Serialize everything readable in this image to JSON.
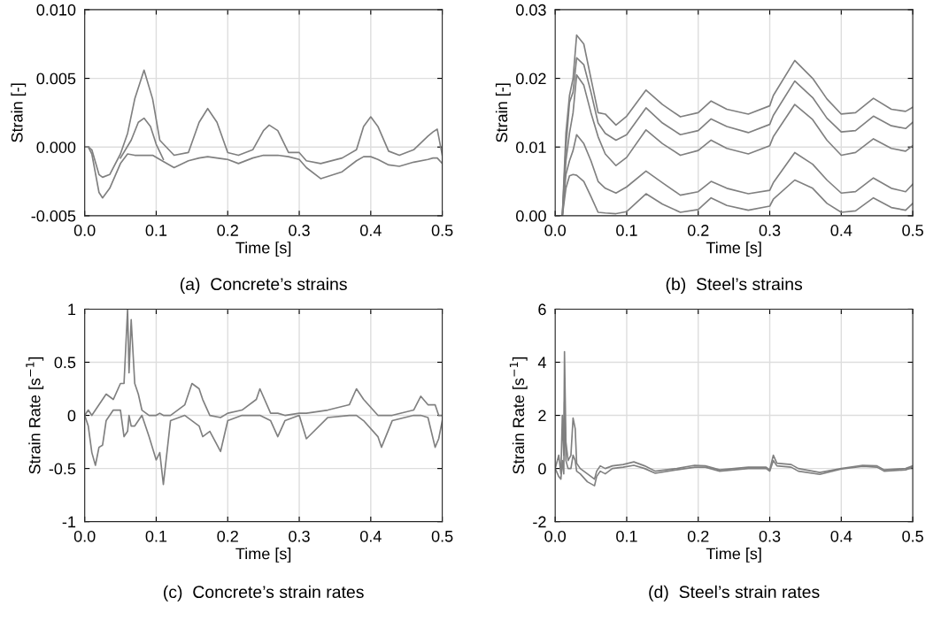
{
  "chart_data": [
    {
      "type": "line",
      "title": "(a)  Concrete’s strains",
      "xlabel": "Time [s]",
      "ylabel": "Strain [-]",
      "grid": true,
      "legend": false,
      "xlim": [
        0,
        0.5
      ],
      "xticks": [
        {
          "value": 0,
          "label": "0.0"
        },
        {
          "value": 0.1,
          "label": "0.1"
        },
        {
          "value": 0.2,
          "label": "0.2"
        },
        {
          "value": 0.3,
          "label": "0.3"
        },
        {
          "value": 0.4,
          "label": "0.4"
        },
        {
          "value": 0.5,
          "label": "0.5"
        }
      ],
      "ylim": [
        -0.005,
        0.01
      ],
      "yticks": [
        {
          "value": -0.005,
          "label": "-0.005"
        },
        {
          "value": 0,
          "label": "0.000"
        },
        {
          "value": 0.005,
          "label": "0.005"
        },
        {
          "value": 0.01,
          "label": "0.010"
        }
      ],
      "series": [
        {
          "color": "#808080",
          "x": [
            0,
            0.005,
            0.01,
            0.02,
            0.025,
            0.035,
            0.05,
            0.06,
            0.07,
            0.083,
            0.095,
            0.105,
            0.125,
            0.145,
            0.16,
            0.172,
            0.185,
            0.2,
            0.215,
            0.235,
            0.25,
            0.258,
            0.27,
            0.285,
            0.3,
            0.31,
            0.33,
            0.36,
            0.38,
            0.39,
            0.4,
            0.41,
            0.425,
            0.44,
            0.46,
            0.48,
            0.487,
            0.493,
            0.5
          ],
          "values": [
            0,
            0,
            -0.0002,
            -0.002,
            -0.0022,
            -0.002,
            -0.0005,
            0.001,
            0.0035,
            0.0056,
            0.0035,
            0.0005,
            -0.0006,
            -0.0004,
            0.0018,
            0.0028,
            0.0018,
            -0.0004,
            -0.0006,
            -0.0002,
            0.0012,
            0.0016,
            0.0012,
            -0.0004,
            -0.0004,
            -0.001,
            -0.0012,
            -0.0008,
            -0.0002,
            0.0015,
            0.0022,
            0.0015,
            -0.0003,
            -0.0006,
            -0.0002,
            0.0008,
            0.0011,
            0.0013,
            -0.0006
          ]
        },
        {
          "color": "#808080",
          "x": [
            0,
            0.005,
            0.01,
            0.02,
            0.025,
            0.035,
            0.05,
            0.06,
            0.07,
            0.083,
            0.095,
            0.105,
            0.125,
            0.145,
            0.16,
            0.172,
            0.185,
            0.2,
            0.215,
            0.235,
            0.25,
            0.258,
            0.27,
            0.285,
            0.3,
            0.31,
            0.33,
            0.36,
            0.38,
            0.39,
            0.4,
            0.41,
            0.425,
            0.44,
            0.46,
            0.48,
            0.487,
            0.493,
            0.5
          ],
          "values": [
            0,
            0,
            -0.0005,
            -0.0033,
            -0.0037,
            -0.003,
            -0.0012,
            -0.0005,
            -0.0006,
            -0.0006,
            -0.0006,
            -0.0009,
            -0.0015,
            -0.001,
            -0.0008,
            -0.0007,
            -0.0008,
            -0.0009,
            -0.0012,
            -0.0008,
            -0.0006,
            -0.0006,
            -0.0006,
            -0.0007,
            -0.0009,
            -0.0015,
            -0.0023,
            -0.0018,
            -0.001,
            -0.0007,
            -0.0007,
            -0.0009,
            -0.0013,
            -0.0014,
            -0.0011,
            -0.0009,
            -0.0008,
            -0.0008,
            -0.0012
          ]
        },
        {
          "color": "#808080",
          "x": [
            0.05,
            0.065,
            0.075,
            0.083,
            0.092,
            0.1,
            0.11
          ],
          "values": [
            -0.0008,
            0.0005,
            0.0018,
            0.0021,
            0.0015,
            0.0002,
            -0.0009
          ]
        }
      ]
    },
    {
      "type": "line",
      "title": "(b)  Steel’s strains",
      "xlabel": "Time [s]",
      "ylabel": "Strain [-]",
      "grid": true,
      "legend": false,
      "xlim": [
        0,
        0.5
      ],
      "xticks": [
        {
          "value": 0,
          "label": "0.0"
        },
        {
          "value": 0.1,
          "label": "0.1"
        },
        {
          "value": 0.2,
          "label": "0.2"
        },
        {
          "value": 0.3,
          "label": "0.3"
        },
        {
          "value": 0.4,
          "label": "0.4"
        },
        {
          "value": 0.5,
          "label": "0.5"
        }
      ],
      "ylim": [
        0,
        0.03
      ],
      "yticks": [
        {
          "value": 0,
          "label": "0.00"
        },
        {
          "value": 0.01,
          "label": "0.01"
        },
        {
          "value": 0.02,
          "label": "0.02"
        },
        {
          "value": 0.03,
          "label": "0.03"
        }
      ],
      "series": [
        {
          "color": "#808080",
          "x": [
            0,
            0.01,
            0.015,
            0.02,
            0.025,
            0.03,
            0.04,
            0.05,
            0.06,
            0.07,
            0.085,
            0.1,
            0.127,
            0.15,
            0.175,
            0.2,
            0.218,
            0.24,
            0.27,
            0.3,
            0.305,
            0.335,
            0.36,
            0.38,
            0.4,
            0.42,
            0.445,
            0.47,
            0.49,
            0.5
          ],
          "values": [
            0,
            0,
            0.012,
            0.0175,
            0.02,
            0.0263,
            0.025,
            0.02,
            0.015,
            0.0148,
            0.0132,
            0.0145,
            0.0183,
            0.0162,
            0.0144,
            0.015,
            0.0167,
            0.0155,
            0.0148,
            0.016,
            0.0175,
            0.0226,
            0.02,
            0.017,
            0.0148,
            0.015,
            0.0171,
            0.0155,
            0.0152,
            0.0158
          ]
        },
        {
          "color": "#808080",
          "x": [
            0,
            0.01,
            0.015,
            0.02,
            0.025,
            0.03,
            0.04,
            0.05,
            0.06,
            0.07,
            0.085,
            0.1,
            0.127,
            0.15,
            0.175,
            0.2,
            0.218,
            0.24,
            0.27,
            0.3,
            0.305,
            0.335,
            0.36,
            0.38,
            0.4,
            0.42,
            0.445,
            0.47,
            0.49,
            0.5
          ],
          "values": [
            0,
            0,
            0.01,
            0.0165,
            0.018,
            0.023,
            0.022,
            0.018,
            0.0135,
            0.012,
            0.011,
            0.0118,
            0.0157,
            0.0135,
            0.0118,
            0.0124,
            0.0141,
            0.013,
            0.0121,
            0.0133,
            0.0146,
            0.0196,
            0.0172,
            0.0142,
            0.0122,
            0.0124,
            0.0145,
            0.0131,
            0.0127,
            0.0136
          ]
        },
        {
          "color": "#808080",
          "x": [
            0,
            0.01,
            0.015,
            0.02,
            0.025,
            0.03,
            0.04,
            0.05,
            0.06,
            0.07,
            0.085,
            0.1,
            0.127,
            0.15,
            0.175,
            0.2,
            0.218,
            0.24,
            0.27,
            0.3,
            0.305,
            0.335,
            0.36,
            0.38,
            0.4,
            0.42,
            0.445,
            0.47,
            0.49,
            0.5
          ],
          "values": [
            0,
            0,
            0.008,
            0.012,
            0.015,
            0.0205,
            0.019,
            0.015,
            0.0115,
            0.009,
            0.0073,
            0.0085,
            0.0125,
            0.0105,
            0.0088,
            0.0095,
            0.011,
            0.0098,
            0.009,
            0.0102,
            0.0115,
            0.0162,
            0.014,
            0.011,
            0.0088,
            0.0092,
            0.0112,
            0.0098,
            0.0094,
            0.0102
          ]
        },
        {
          "color": "#808080",
          "x": [
            0,
            0.01,
            0.015,
            0.02,
            0.025,
            0.03,
            0.04,
            0.05,
            0.06,
            0.07,
            0.085,
            0.1,
            0.127,
            0.15,
            0.175,
            0.2,
            0.218,
            0.24,
            0.27,
            0.3,
            0.305,
            0.335,
            0.36,
            0.38,
            0.4,
            0.42,
            0.445,
            0.47,
            0.49,
            0.5
          ],
          "values": [
            0,
            0,
            0.006,
            0.008,
            0.0095,
            0.0118,
            0.0105,
            0.008,
            0.005,
            0.004,
            0.0033,
            0.0042,
            0.0065,
            0.0048,
            0.003,
            0.0035,
            0.005,
            0.004,
            0.0032,
            0.0037,
            0.0048,
            0.0092,
            0.0075,
            0.0052,
            0.0033,
            0.0035,
            0.0055,
            0.004,
            0.0035,
            0.0046
          ]
        },
        {
          "color": "#808080",
          "x": [
            0,
            0.01,
            0.015,
            0.02,
            0.025,
            0.03,
            0.04,
            0.05,
            0.06,
            0.07,
            0.085,
            0.1,
            0.127,
            0.15,
            0.175,
            0.2,
            0.218,
            0.24,
            0.27,
            0.3,
            0.305,
            0.335,
            0.36,
            0.38,
            0.4,
            0.42,
            0.445,
            0.47,
            0.49,
            0.5
          ],
          "values": [
            0,
            0,
            0.004,
            0.0058,
            0.006,
            0.0059,
            0.005,
            0.0028,
            0.0005,
            0.0004,
            0.0003,
            0.0006,
            0.0032,
            0.0017,
            0.0005,
            0.0009,
            0.0026,
            0.0015,
            0.0008,
            0.0014,
            0.0024,
            0.0052,
            0.004,
            0.0018,
            0.0005,
            0.0007,
            0.0026,
            0.0012,
            0.0008,
            0.0018
          ]
        }
      ]
    },
    {
      "type": "line",
      "title": "(c)  Concrete’s strain rates",
      "xlabel": "Time [s]",
      "ylabel": "Strain Rate [s$^{−1}$]",
      "grid": true,
      "legend": false,
      "xlim": [
        0,
        0.5
      ],
      "xticks": [
        {
          "value": 0,
          "label": "0.0"
        },
        {
          "value": 0.1,
          "label": "0.1"
        },
        {
          "value": 0.2,
          "label": "0.2"
        },
        {
          "value": 0.3,
          "label": "0.3"
        },
        {
          "value": 0.4,
          "label": "0.4"
        },
        {
          "value": 0.5,
          "label": "0.5"
        }
      ],
      "ylim": [
        -1,
        1
      ],
      "yticks": [
        -1,
        -0.5,
        0,
        0.5,
        1
      ],
      "series": [
        {
          "color": "#808080",
          "x": [
            0,
            0.005,
            0.01,
            0.015,
            0.02,
            0.025,
            0.03,
            0.04,
            0.05,
            0.055,
            0.06,
            0.062,
            0.065,
            0.07,
            0.075,
            0.08,
            0.09,
            0.1,
            0.105,
            0.11,
            0.12,
            0.14,
            0.15,
            0.16,
            0.165,
            0.175,
            0.19,
            0.2,
            0.22,
            0.24,
            0.245,
            0.26,
            0.27,
            0.28,
            0.3,
            0.31,
            0.34,
            0.37,
            0.38,
            0.39,
            0.41,
            0.415,
            0.43,
            0.46,
            0.47,
            0.48,
            0.49,
            0.495,
            0.5
          ],
          "values": [
            0,
            0.05,
            0,
            0.05,
            0.1,
            0.15,
            0.2,
            0.15,
            0.3,
            0.3,
            1,
            0.4,
            0.9,
            0.3,
            0.2,
            0.05,
            0,
            0,
            0.02,
            0,
            0,
            0.1,
            0.3,
            0.25,
            0.15,
            0,
            -0.02,
            0.02,
            0.05,
            0.15,
            0.25,
            0.02,
            0.02,
            0,
            0.02,
            0.02,
            0.05,
            0.1,
            0.25,
            0.15,
            0,
            0,
            0,
            0.05,
            0.18,
            0.1,
            0.1,
            0,
            0
          ]
        },
        {
          "color": "#808080",
          "x": [
            0,
            0.005,
            0.01,
            0.015,
            0.02,
            0.025,
            0.03,
            0.04,
            0.05,
            0.055,
            0.06,
            0.062,
            0.065,
            0.07,
            0.075,
            0.08,
            0.09,
            0.1,
            0.105,
            0.11,
            0.12,
            0.14,
            0.15,
            0.16,
            0.165,
            0.175,
            0.19,
            0.2,
            0.22,
            0.24,
            0.245,
            0.26,
            0.27,
            0.28,
            0.3,
            0.31,
            0.34,
            0.37,
            0.38,
            0.39,
            0.41,
            0.415,
            0.43,
            0.46,
            0.47,
            0.48,
            0.49,
            0.495,
            0.5
          ],
          "values": [
            0,
            -0.1,
            -0.35,
            -0.47,
            -0.3,
            -0.28,
            -0.05,
            0.05,
            0.05,
            -0.2,
            -0.15,
            0,
            -0.1,
            -0.1,
            -0.05,
            0,
            -0.2,
            -0.42,
            -0.35,
            -0.65,
            -0.05,
            0,
            -0.05,
            -0.1,
            -0.2,
            -0.15,
            -0.34,
            -0.05,
            0,
            0,
            0,
            -0.05,
            -0.2,
            -0.05,
            0,
            -0.22,
            -0.02,
            0,
            0,
            -0.05,
            -0.2,
            -0.3,
            -0.05,
            0,
            0,
            -0.02,
            -0.3,
            -0.22,
            -0.05
          ]
        }
      ]
    },
    {
      "type": "line",
      "title": "(d)  Steel’s strain rates",
      "xlabel": "Time [s]",
      "ylabel": "Strain Rate [s$^{−1}$]",
      "grid": true,
      "legend": false,
      "xlim": [
        0,
        0.5
      ],
      "xticks": [
        {
          "value": 0,
          "label": "0.0"
        },
        {
          "value": 0.1,
          "label": "0.1"
        },
        {
          "value": 0.2,
          "label": "0.2"
        },
        {
          "value": 0.3,
          "label": "0.3"
        },
        {
          "value": 0.4,
          "label": "0.4"
        },
        {
          "value": 0.5,
          "label": "0.5"
        }
      ],
      "ylim": [
        -2,
        6
      ],
      "yticks": [
        -2,
        0,
        2,
        4,
        6
      ],
      "series": [
        {
          "color": "#808080",
          "x": [
            0,
            0.005,
            0.008,
            0.01,
            0.012,
            0.013,
            0.015,
            0.018,
            0.022,
            0.025,
            0.028,
            0.03,
            0.035,
            0.045,
            0.055,
            0.058,
            0.063,
            0.07,
            0.08,
            0.095,
            0.11,
            0.125,
            0.14,
            0.17,
            0.195,
            0.21,
            0.23,
            0.27,
            0.295,
            0.3,
            0.305,
            0.31,
            0.33,
            0.34,
            0.37,
            0.4,
            0.43,
            0.45,
            0.46,
            0.49,
            0.5
          ],
          "values": [
            0,
            0.5,
            -0.2,
            2,
            0.5,
            4.4,
            1,
            0.3,
            0.5,
            1.9,
            1.5,
            0.2,
            0,
            -0.2,
            -0.4,
            -0.1,
            0.1,
            0,
            0.1,
            0.15,
            0.25,
            0.1,
            -0.1,
            0,
            0.12,
            0.1,
            -0.05,
            0.05,
            0.05,
            -0.05,
            0.5,
            0.2,
            0.15,
            0,
            -0.15,
            0,
            0.12,
            0.1,
            -0.05,
            0,
            0.1
          ]
        },
        {
          "color": "#808080",
          "x": [
            0,
            0.005,
            0.008,
            0.01,
            0.012,
            0.013,
            0.015,
            0.018,
            0.022,
            0.025,
            0.028,
            0.03,
            0.035,
            0.045,
            0.055,
            0.058,
            0.063,
            0.07,
            0.08,
            0.095,
            0.11,
            0.125,
            0.14,
            0.17,
            0.195,
            0.21,
            0.23,
            0.27,
            0.295,
            0.3,
            0.305,
            0.31,
            0.33,
            0.34,
            0.37,
            0.4,
            0.43,
            0.45,
            0.46,
            0.49,
            0.5
          ],
          "values": [
            0,
            -0.3,
            -0.4,
            0.3,
            -0.2,
            2.5,
            0.3,
            0,
            0,
            0.5,
            0.3,
            -0.1,
            -0.2,
            -0.5,
            -0.65,
            -0.3,
            -0.1,
            -0.2,
            0,
            0.05,
            0.12,
            0,
            -0.18,
            -0.05,
            0.05,
            0.05,
            -0.1,
            0,
            0,
            -0.1,
            0.3,
            0.1,
            0.05,
            -0.1,
            -0.22,
            -0.02,
            0.08,
            0.05,
            -0.1,
            -0.05,
            0.05
          ]
        }
      ]
    }
  ]
}
